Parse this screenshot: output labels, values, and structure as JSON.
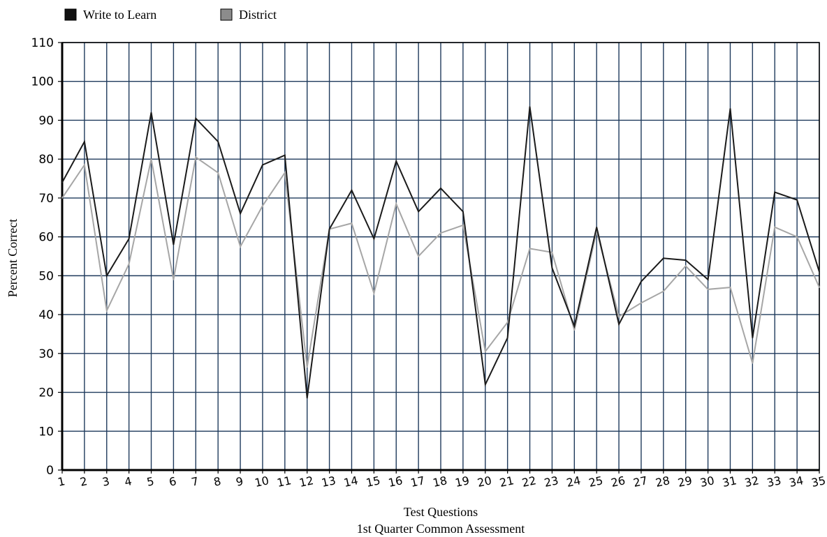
{
  "chart_data": {
    "type": "line",
    "xlabel": "Test Questions",
    "subtitle": "1st Quarter Common Assessment",
    "ylabel": "Percent Correct",
    "ylim": [
      0,
      110
    ],
    "yticks": [
      0,
      10,
      20,
      30,
      40,
      50,
      60,
      70,
      80,
      90,
      100,
      110
    ],
    "categories": [
      "1",
      "2",
      "3",
      "4",
      "5",
      "6",
      "7",
      "8",
      "9",
      "10",
      "11",
      "12",
      "13",
      "14",
      "15",
      "16",
      "17",
      "18",
      "19",
      "20",
      "21",
      "22",
      "23",
      "24",
      "25",
      "26",
      "27",
      "28",
      "29",
      "30",
      "31",
      "32",
      "33",
      "34",
      "35"
    ],
    "grid": true,
    "legend_position": "top-left",
    "series": [
      {
        "name": "Write to Learn",
        "color": "#1a1a1a",
        "values": [
          74,
          84.5,
          50,
          59.5,
          92,
          58,
          90.5,
          84.5,
          66,
          78.5,
          81,
          18.5,
          62,
          72,
          59.5,
          79.5,
          66.5,
          72.5,
          66.5,
          22,
          34,
          93.5,
          52,
          37,
          62.5,
          37.5,
          48.5,
          54.5,
          54,
          49,
          93,
          34,
          71.5,
          69.5,
          51
        ]
      },
      {
        "name": "District",
        "color": "#a6a6a6",
        "values": [
          70,
          78.5,
          41,
          53,
          80,
          49,
          80.5,
          76.5,
          57.5,
          68,
          76.5,
          26.5,
          62,
          63.5,
          45.5,
          68.5,
          55,
          61,
          63,
          30.5,
          38,
          57,
          56,
          36,
          61.5,
          39.5,
          43,
          46,
          52.5,
          46.5,
          47,
          27.5,
          62.5,
          60,
          47
        ]
      }
    ]
  }
}
